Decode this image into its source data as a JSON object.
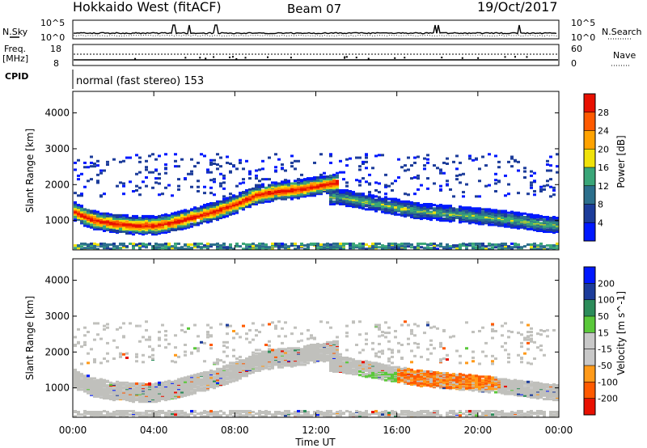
{
  "header": {
    "radar": "Hokkaido West (fitACF)",
    "beam": "Beam 07",
    "date": "19/Oct/2017"
  },
  "status_panels": {
    "nsky_label": "N.Sky",
    "nsearch_label": "N.Search",
    "noise_ticks": [
      "10^5",
      "10^0"
    ],
    "noise_ticks_right": [
      "10^5",
      "10^0"
    ],
    "freq_label_line1": "Freq.",
    "freq_label_line2": "[MHz]",
    "freq_ticks": [
      "18",
      "8"
    ],
    "freq_range": [
      8,
      18
    ],
    "nave_label": "Nave",
    "nave_ticks": [
      "60",
      "0"
    ],
    "nave_range": [
      0,
      60
    ],
    "cpid_label": "CPID",
    "cpid_text": "normal (fast stereo) 153"
  },
  "colors": {
    "power_scale": [
      "#0018ff",
      "#1c3c9a",
      "#2c6f8c",
      "#3aa678",
      "#f0e20a",
      "#ffa200",
      "#ff5a00",
      "#e81000"
    ],
    "velocity_scale": [
      "#e81000",
      "#ff5a00",
      "#ff9a1a",
      "#c8c8c8",
      "#c8c8c8",
      "#5ac83a",
      "#2c8c5a",
      "#1c3c9a",
      "#0018ff"
    ],
    "velocity_ground": "#c0c0bc"
  },
  "chart_data": [
    {
      "type": "heatmap",
      "title": "",
      "xlabel": "Time UT",
      "ylabel": "Slant Range [km]",
      "xticks": [
        "00:00",
        "04:00",
        "08:00",
        "12:00",
        "16:00",
        "20:00",
        "00:00"
      ],
      "xlim_hours": [
        0,
        24
      ],
      "yticks": [
        "1000",
        "2000",
        "3000",
        "4000"
      ],
      "ylim": [
        180,
        4600
      ],
      "colorbar": {
        "label": "Power [dB]",
        "ticks": [
          "4",
          "8",
          "12",
          "16",
          "20",
          "24",
          "28"
        ],
        "range": [
          0,
          32
        ]
      },
      "features": [
        {
          "kind": "main_band",
          "time_h": [
            0,
            0.5,
            1,
            2,
            3,
            4,
            5,
            6,
            7,
            8,
            9,
            10,
            11,
            12,
            13
          ],
          "range_km": [
            1300,
            1150,
            1050,
            950,
            900,
            900,
            1000,
            1150,
            1300,
            1500,
            1750,
            1850,
            1900,
            2000,
            2100
          ],
          "power_db": 26
        },
        {
          "kind": "weak_band",
          "time_h": [
            13,
            15,
            17,
            19,
            21,
            23,
            24
          ],
          "range_km": [
            1700,
            1500,
            1300,
            1200,
            1100,
            950,
            900
          ],
          "power_db": 14
        },
        {
          "kind": "patch",
          "time_h": 18.5,
          "range_km": 1200,
          "power_db": 20
        },
        {
          "kind": "patch",
          "time_h": 21.3,
          "range_km": 2400,
          "power_db": 18
        },
        {
          "kind": "patch",
          "time_h": 14.0,
          "range_km": 1950,
          "power_db": 18
        }
      ]
    },
    {
      "type": "heatmap",
      "title": "",
      "xlabel": "Time UT",
      "ylabel": "Slant Range [km]",
      "xticks": [
        "00:00",
        "04:00",
        "08:00",
        "12:00",
        "16:00",
        "20:00",
        "00:00"
      ],
      "xlim_hours": [
        0,
        24
      ],
      "yticks": [
        "1000",
        "2000",
        "3000",
        "4000"
      ],
      "ylim": [
        180,
        4600
      ],
      "colorbar": {
        "label": "Velocity [m s^-1]",
        "ticks": [
          "200",
          "100",
          "50",
          "15",
          "-15",
          "-50",
          "-100",
          "-200"
        ],
        "range": [
          -250,
          250
        ]
      },
      "features": [
        {
          "kind": "ground_scatter",
          "time_h": [
            0,
            13
          ],
          "range_km": [
            900,
            1900
          ],
          "velocity": 0
        },
        {
          "kind": "patch",
          "time_h": 18.5,
          "range_km": 1350,
          "velocity": -60
        },
        {
          "kind": "patch",
          "time_h": 15.0,
          "range_km": 1300,
          "velocity": 30
        }
      ]
    }
  ]
}
